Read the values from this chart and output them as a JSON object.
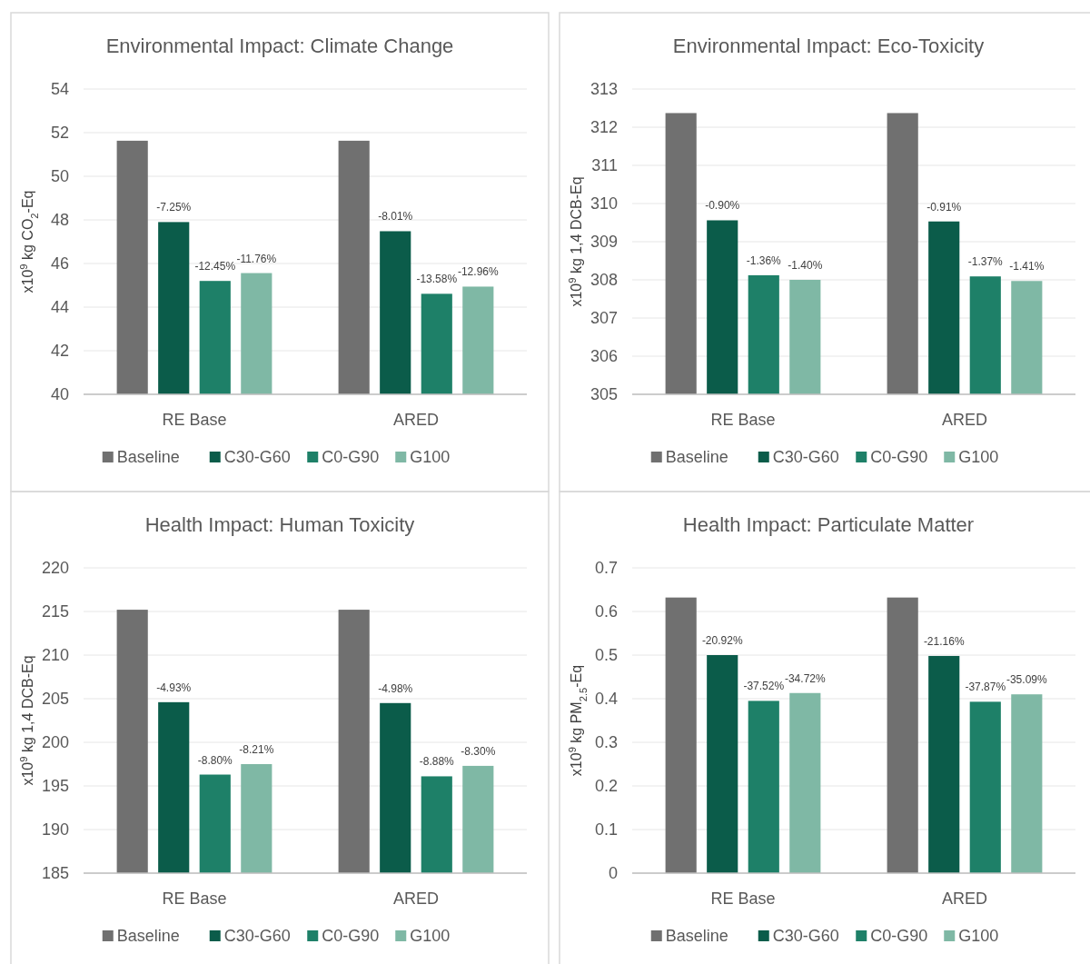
{
  "chart_data": [
    {
      "type": "bar",
      "title": "Environmental Impact: Climate Change",
      "ylabel": "x10$^{9}$ kg CO$_{2}$-Eq",
      "categories": [
        "RE Base",
        "ARED"
      ],
      "ylim": [
        40,
        54
      ],
      "yticks": [
        40,
        42,
        44,
        46,
        48,
        50,
        52,
        54
      ],
      "grid": "y",
      "legend": "bottom",
      "series": [
        {
          "name": "Baseline",
          "color": "#707070",
          "values": [
            51.63,
            51.63
          ]
        },
        {
          "name": "C30-G60",
          "color": "#0b5c4a",
          "values": [
            47.9,
            47.48
          ]
        },
        {
          "name": "C0-G90",
          "color": "#1e8068",
          "values": [
            45.2,
            44.61
          ]
        },
        {
          "name": "G100",
          "color": "#7fb8a5",
          "values": [
            45.56,
            44.94
          ]
        }
      ],
      "annotations": [
        "-7.25%",
        "-12.45%",
        "-11.76%",
        "-8.01%",
        "-13.58%",
        "-12.96%"
      ]
    },
    {
      "type": "bar",
      "title": "Environmental Impact: Eco-Toxicity",
      "ylabel": "x10$^{9}$ kg 1,4 DCB-Eq",
      "categories": [
        "RE Base",
        "ARED"
      ],
      "ylim": [
        305,
        313
      ],
      "yticks": [
        305,
        306,
        307,
        308,
        309,
        310,
        311,
        312,
        313
      ],
      "grid": "y",
      "legend": "bottom",
      "series": [
        {
          "name": "Baseline",
          "color": "#707070",
          "values": [
            312.37,
            312.37
          ]
        },
        {
          "name": "C30-G60",
          "color": "#0b5c4a",
          "values": [
            309.56,
            309.53
          ]
        },
        {
          "name": "C0-G90",
          "color": "#1e8068",
          "values": [
            308.12,
            308.09
          ]
        },
        {
          "name": "G100",
          "color": "#7fb8a5",
          "values": [
            308.0,
            307.97
          ]
        }
      ],
      "annotations": [
        "-0.90%",
        "-1.36%",
        "-1.40%",
        "-0.91%",
        "-1.37%",
        "-1.41%"
      ]
    },
    {
      "type": "bar",
      "title": "Health Impact: Human Toxicity",
      "ylabel": "x10$^{9}$ kg 1,4 DCB-Eq",
      "categories": [
        "RE Base",
        "ARED"
      ],
      "ylim": [
        185,
        220
      ],
      "yticks": [
        185,
        190,
        195,
        200,
        205,
        210,
        215,
        220
      ],
      "grid": "y",
      "legend": "bottom",
      "series": [
        {
          "name": "Baseline",
          "color": "#707070",
          "values": [
            215.2,
            215.2
          ]
        },
        {
          "name": "C30-G60",
          "color": "#0b5c4a",
          "values": [
            204.6,
            204.5
          ]
        },
        {
          "name": "C0-G90",
          "color": "#1e8068",
          "values": [
            196.3,
            196.1
          ]
        },
        {
          "name": "G100",
          "color": "#7fb8a5",
          "values": [
            197.5,
            197.3
          ]
        }
      ],
      "annotations": [
        "-4.93%",
        "-8.80%",
        "-8.21%",
        "-4.98%",
        "-8.88%",
        "-8.30%"
      ]
    },
    {
      "type": "bar",
      "title": "Health Impact: Particulate Matter",
      "ylabel": "x10$^{9}$ kg PM$_{2.5}$-Eq",
      "categories": [
        "RE Base",
        "ARED"
      ],
      "ylim": [
        0,
        0.7
      ],
      "yticks": [
        0,
        0.1,
        0.2,
        0.3,
        0.4,
        0.5,
        0.6,
        0.7
      ],
      "grid": "y",
      "legend": "bottom",
      "series": [
        {
          "name": "Baseline",
          "color": "#707070",
          "values": [
            0.632,
            0.632
          ]
        },
        {
          "name": "C30-G60",
          "color": "#0b5c4a",
          "values": [
            0.5,
            0.498
          ]
        },
        {
          "name": "C0-G90",
          "color": "#1e8068",
          "values": [
            0.395,
            0.393
          ]
        },
        {
          "name": "G100",
          "color": "#7fb8a5",
          "values": [
            0.413,
            0.41
          ]
        }
      ],
      "annotations": [
        "-20.92%",
        "-37.52%",
        "-34.72%",
        "-21.16%",
        "-37.87%",
        "-35.09%"
      ]
    }
  ]
}
